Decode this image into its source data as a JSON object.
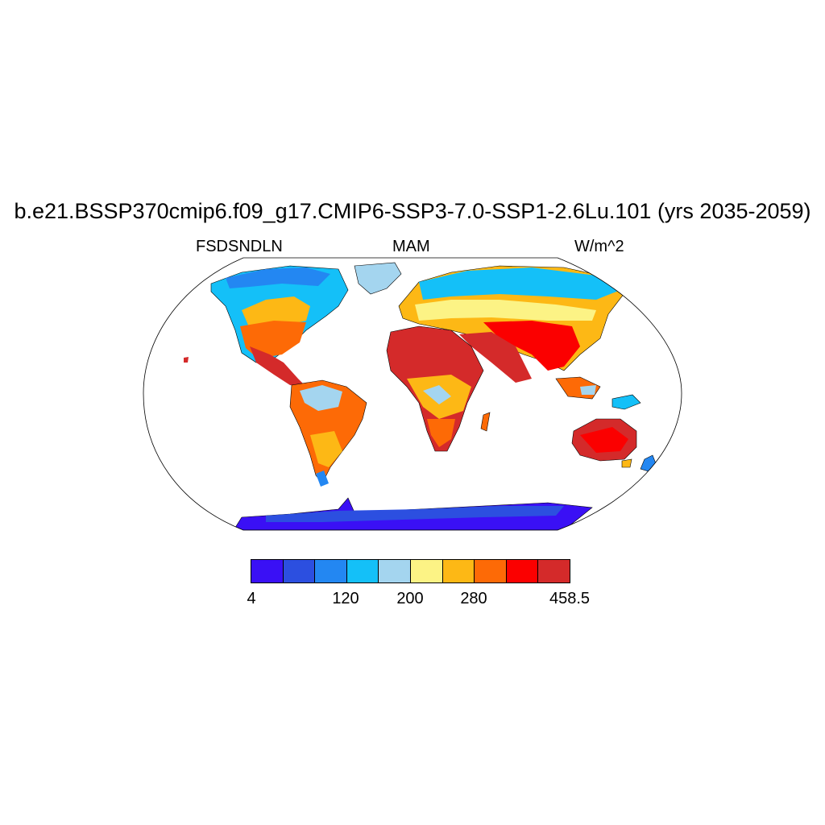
{
  "title": "b.e21.BSSP370cmip6.f09_g17.CMIP6-SSP3-7.0-SSP1-2.6Lu.101 (yrs 2035-2059)",
  "left_string": "FSDSNDLN",
  "center_string": "MAM",
  "right_string": "W/m^2",
  "projection": "Robinson",
  "colorbar": {
    "colors": [
      "#3a10f5",
      "#2c4fe0",
      "#2387f2",
      "#14c0f8",
      "#a4d5ef",
      "#fcf385",
      "#fdb815",
      "#fd6a06",
      "#fb0000",
      "#d42a2a"
    ],
    "labels": [
      "4",
      "120",
      "200",
      "280",
      "458.5"
    ]
  }
}
